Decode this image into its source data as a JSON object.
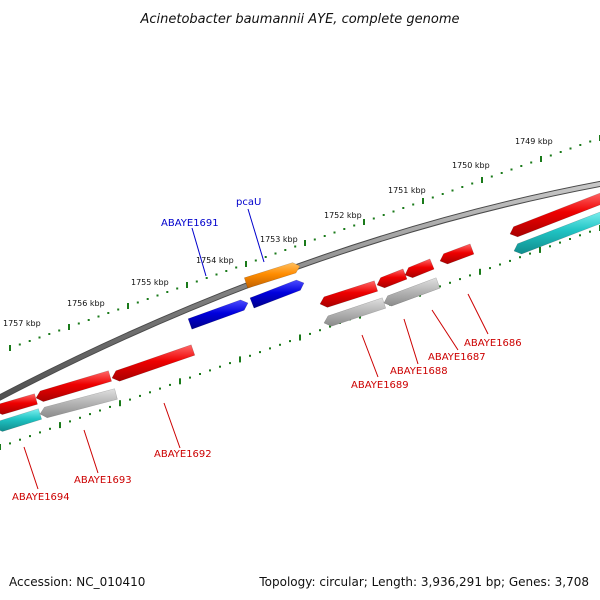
{
  "title": "Acinetobacter baumannii AYE, complete genome",
  "footer": {
    "accession": "Accession: NC_010410",
    "summary": "Topology: circular; Length: 3,936,291 bp; Genes: 3,708"
  },
  "ruler": {
    "labels": [
      "1749 kbp",
      "1750 kbp",
      "1751 kbp",
      "1752 kbp",
      "1753 kbp",
      "1754 kbp",
      "1755 kbp",
      "1756 kbp",
      "1757 kbp"
    ]
  },
  "genes_top": [
    {
      "name": "ABAYE1691",
      "color": "#0000cc"
    },
    {
      "name": "pcaU",
      "color": "#0000cc"
    }
  ],
  "genes_bottom": [
    {
      "name": "ABAYE1686",
      "color": "#cc0000"
    },
    {
      "name": "ABAYE1687",
      "color": "#cc0000"
    },
    {
      "name": "ABAYE1688",
      "color": "#cc0000"
    },
    {
      "name": "ABAYE1689",
      "color": "#cc0000"
    },
    {
      "name": "ABAYE1692",
      "color": "#cc0000"
    },
    {
      "name": "ABAYE1693",
      "color": "#cc0000"
    },
    {
      "name": "ABAYE1694",
      "color": "#cc0000"
    }
  ],
  "colors": {
    "backbone": "#808080",
    "ruler": "#1a7a1a",
    "forward_cds": "#0000dd",
    "forward_gene": "#ff8800",
    "reverse_cds": "#ee0000",
    "reverse_gene": "#b0b0b0",
    "rna": "#20c0c0"
  }
}
